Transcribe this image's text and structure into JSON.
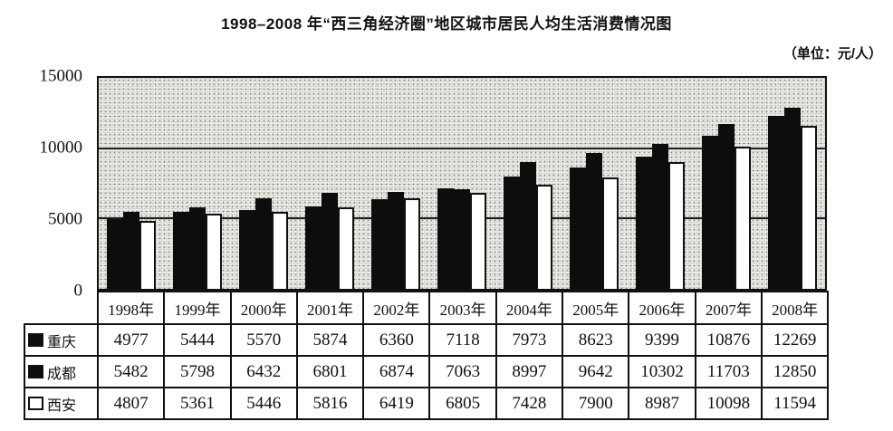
{
  "title": "1998–2008 年“西三角经济圈”地区城市居民人均生活消费情况图",
  "unit_label": "（单位：元/人）",
  "chart_data": {
    "type": "bar",
    "categories": [
      "1998年",
      "1999年",
      "2000年",
      "2001年",
      "2002年",
      "2003年",
      "2004年",
      "2005年",
      "2006年",
      "2007年",
      "2008年"
    ],
    "series": [
      {
        "name": "重庆",
        "swatch": "black",
        "color": "#0d0d0d",
        "values": [
          4977,
          5444,
          5570,
          5874,
          6360,
          7118,
          7973,
          8623,
          9399,
          10876,
          12269
        ]
      },
      {
        "name": "成都",
        "swatch": "black",
        "color": "#0d0d0d",
        "values": [
          5482,
          5798,
          6432,
          6801,
          6874,
          7063,
          8997,
          9642,
          10302,
          11703,
          12850
        ]
      },
      {
        "name": "西安",
        "swatch": "white",
        "color": "#ffffff",
        "values": [
          4807,
          5361,
          5446,
          5816,
          6419,
          6805,
          7428,
          7900,
          8987,
          10098,
          11594
        ]
      }
    ],
    "xlabel": "",
    "ylabel": "",
    "ylim": [
      0,
      15000
    ],
    "yticks": [
      0,
      5000,
      10000,
      15000
    ],
    "grid": true,
    "grid_lines_at": [
      5000,
      10000
    ],
    "plot_background": "stippled-gray",
    "legend_position": "table-left"
  }
}
